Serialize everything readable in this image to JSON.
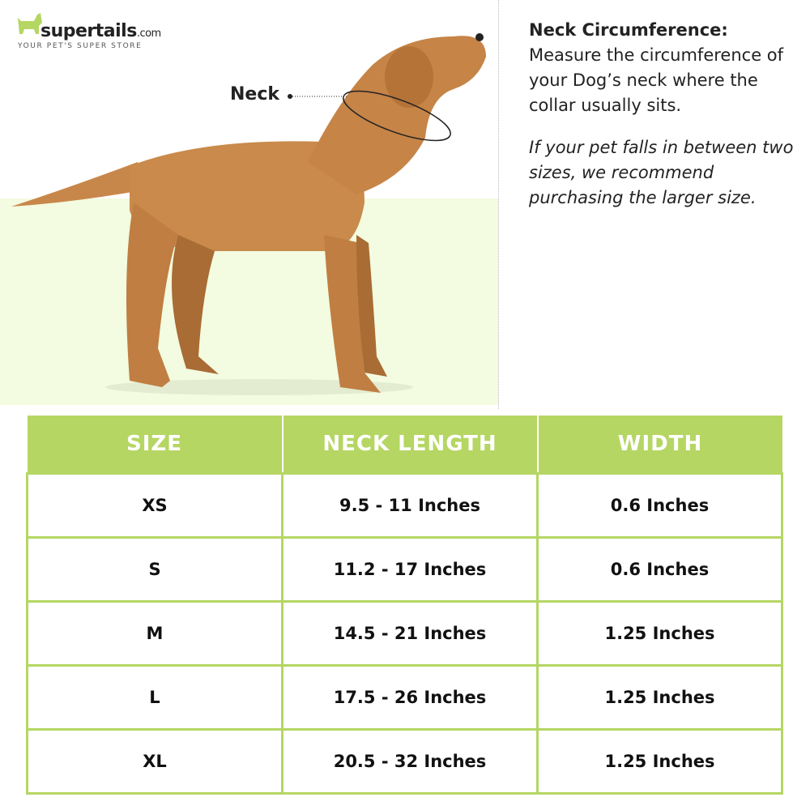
{
  "brand": {
    "name": "supertails",
    "suffix": ".com",
    "tagline": "YOUR PET'S SUPER STORE",
    "color": "#b5d663"
  },
  "diagram": {
    "neck_label": "Neck"
  },
  "info": {
    "title": "Neck Circumference:",
    "body": "Measure the circumference of your Dog’s neck where the collar usually sits.",
    "note": "If your pet falls in between two sizes, we recommend purchasing the larger size."
  },
  "table": {
    "headers": [
      "SIZE",
      "NECK LENGTH",
      "WIDTH"
    ],
    "rows": [
      [
        "XS",
        "9.5 - 11 Inches",
        "0.6 Inches"
      ],
      [
        "S",
        "11.2 - 17 Inches",
        "0.6 Inches"
      ],
      [
        "M",
        "14.5 - 21 Inches",
        "1.25 Inches"
      ],
      [
        "L",
        "17.5 - 26 Inches",
        "1.25 Inches"
      ],
      [
        "XL",
        "20.5 - 32 Inches",
        "1.25 Inches"
      ]
    ]
  }
}
